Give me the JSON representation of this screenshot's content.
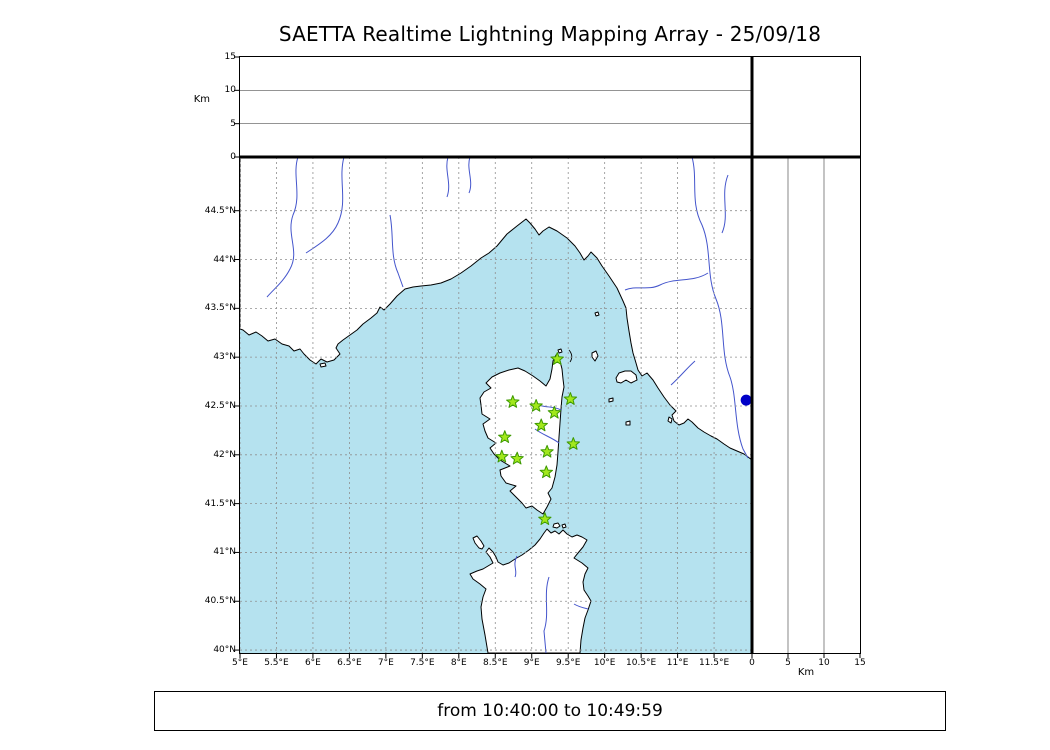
{
  "title": "SAETTA Realtime Lightning Mapping Array - 25/09/18",
  "status_bar": {
    "text": "from 10:40:00 to 10:49:59"
  },
  "axes": {
    "altitude_left": {
      "unit_label": "Km",
      "ticks": [
        {
          "value": 15,
          "label": "15"
        },
        {
          "value": 10,
          "label": "10"
        },
        {
          "value": 5,
          "label": "5"
        },
        {
          "value": 0,
          "label": "0"
        }
      ]
    },
    "altitude_bottom": {
      "unit_label": "Km",
      "ticks": [
        {
          "value": 0,
          "label": "0"
        },
        {
          "value": 5,
          "label": "5"
        },
        {
          "value": 10,
          "label": "10"
        },
        {
          "value": 15,
          "label": "15"
        }
      ]
    },
    "latitude": {
      "ticks": [
        {
          "value": 44.5,
          "label": "44.5°N"
        },
        {
          "value": 44,
          "label": "44°N"
        },
        {
          "value": 43.5,
          "label": "43.5°N"
        },
        {
          "value": 43,
          "label": "43°N"
        },
        {
          "value": 42.5,
          "label": "42.5°N"
        },
        {
          "value": 42,
          "label": "42°N"
        },
        {
          "value": 41.5,
          "label": "41.5°N"
        },
        {
          "value": 41,
          "label": "41°N"
        },
        {
          "value": 40.5,
          "label": "40.5°N"
        },
        {
          "value": 40,
          "label": "40°N"
        }
      ]
    },
    "longitude": {
      "ticks": [
        {
          "value": 5,
          "label": "5°E"
        },
        {
          "value": 5.5,
          "label": "5.5°E"
        },
        {
          "value": 6,
          "label": "6°E"
        },
        {
          "value": 6.5,
          "label": "6.5°E"
        },
        {
          "value": 7,
          "label": "7°E"
        },
        {
          "value": 7.5,
          "label": "7.5°E"
        },
        {
          "value": 8,
          "label": "8°E"
        },
        {
          "value": 8.5,
          "label": "8.5°E"
        },
        {
          "value": 9,
          "label": "9°E"
        },
        {
          "value": 9.5,
          "label": "9.5°E"
        },
        {
          "value": 10,
          "label": "10°E"
        },
        {
          "value": 10.5,
          "label": "10.5°E"
        },
        {
          "value": 11,
          "label": "11°E"
        },
        {
          "value": 11.5,
          "label": "11.5°E"
        }
      ]
    }
  },
  "colors": {
    "sea": "#b5e2ef",
    "land": "#ffffff",
    "coast": "#000000",
    "grid": "#8f8f8f",
    "river": "#4455cc",
    "station_fill": "#a2e81c",
    "station_edge": "#3d9900",
    "event": "#0000c8",
    "frame": "#000000"
  },
  "chart_data": {
    "type": "scatter",
    "title": "SAETTA Realtime Lightning Mapping Array - 25/09/18",
    "date": "25/09/18",
    "time_window": {
      "from": "10:40:00",
      "to": "10:49:59"
    },
    "panels": {
      "map": {
        "x": "longitude_deg_E",
        "y": "latitude_deg_N",
        "xlim": [
          5,
          12.02
        ],
        "ylim": [
          39.97,
          45.05
        ],
        "grid": "dashed 0.5deg"
      },
      "altitude_top": {
        "y_label": "Km",
        "ylim": [
          0,
          15
        ],
        "gridlines_km": [
          5,
          10
        ],
        "points": []
      },
      "altitude_right": {
        "x_label": "Km",
        "xlim": [
          0,
          15
        ],
        "gridlines_km": [
          5,
          10
        ],
        "points": []
      }
    },
    "series": [
      {
        "name": "lma-station-markers",
        "marker": "star",
        "points": [
          [
            9.35,
            42.98
          ],
          [
            8.74,
            42.54
          ],
          [
            9.06,
            42.5
          ],
          [
            9.53,
            42.57
          ],
          [
            9.31,
            42.43
          ],
          [
            9.13,
            42.3
          ],
          [
            8.63,
            42.18
          ],
          [
            9.57,
            42.11
          ],
          [
            8.59,
            41.98
          ],
          [
            8.8,
            41.96
          ],
          [
            9.21,
            42.03
          ],
          [
            9.2,
            41.82
          ],
          [
            9.18,
            41.34
          ]
        ]
      },
      {
        "name": "lightning-detection",
        "marker": "circle",
        "points": [
          [
            11.94,
            42.56
          ]
        ]
      }
    ]
  }
}
